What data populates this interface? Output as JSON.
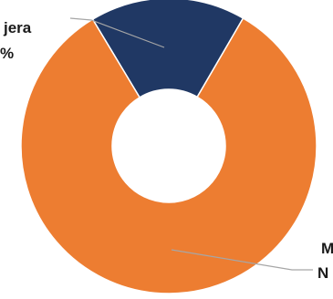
{
  "chart_data": {
    "type": "pie",
    "style": "donut",
    "slices": [
      {
        "label_line1": "jera",
        "label_line2": "%",
        "value": 17,
        "color": "#203864"
      },
      {
        "label_line1": "M",
        "label_line2": "N",
        "value": 83,
        "color": "#ed7d31"
      }
    ],
    "title": "",
    "legend": "none"
  }
}
